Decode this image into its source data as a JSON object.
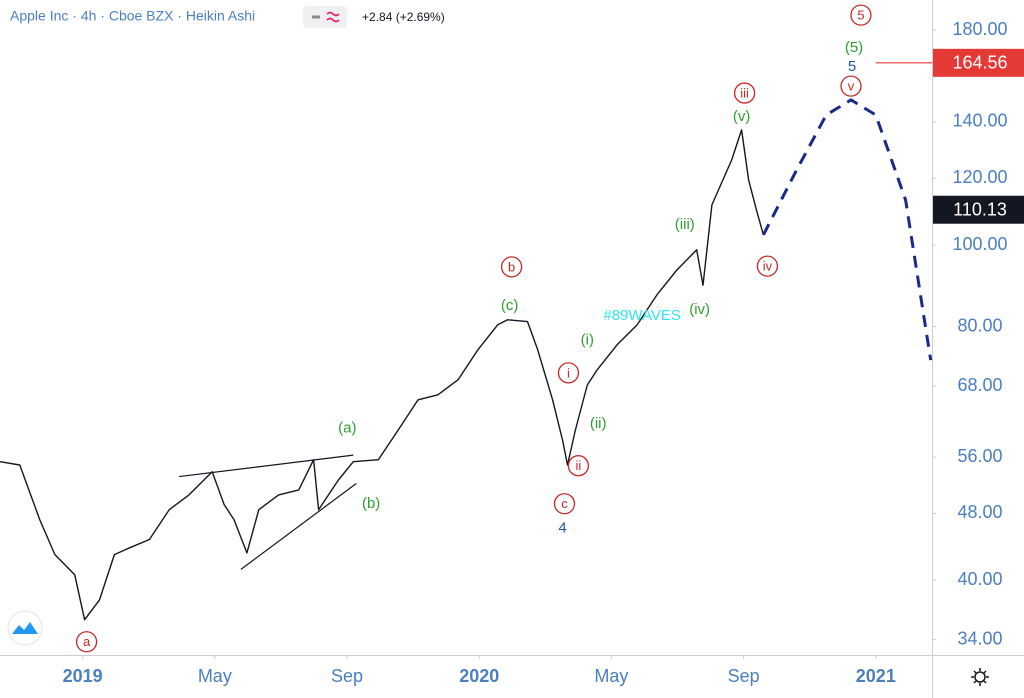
{
  "chart_data": {
    "type": "line",
    "title": "Apple Inc · 4h · Cboe BZX · Heikin Ashi",
    "change": "+2.84 (+2.69%)",
    "log_scale": true,
    "grid": false,
    "xlim": [
      -2.5,
      25.7
    ],
    "xticks": [
      {
        "value": 0,
        "label": "2019"
      },
      {
        "value": 4,
        "label": "May"
      },
      {
        "value": 8,
        "label": "Sep"
      },
      {
        "value": 12,
        "label": "2020"
      },
      {
        "value": 16,
        "label": "May"
      },
      {
        "value": 20,
        "label": "Sep"
      },
      {
        "value": 24,
        "label": "2021"
      }
    ],
    "ylim": [
      32.6,
      195.4
    ],
    "yticks": [
      {
        "value": 34,
        "label": "34.00"
      },
      {
        "value": 40,
        "label": "40.00"
      },
      {
        "value": 48,
        "label": "48.00"
      },
      {
        "value": 56,
        "label": "56.00"
      },
      {
        "value": 68,
        "label": "68.00"
      },
      {
        "value": 80,
        "label": "80.00"
      },
      {
        "value": 100,
        "label": "100.00"
      },
      {
        "value": 120,
        "label": "120.00"
      },
      {
        "value": 140,
        "label": "140.00"
      },
      {
        "value": 180,
        "label": "180.00"
      }
    ],
    "series": [
      {
        "color": "#131722",
        "width": 1.4,
        "dashed": false,
        "x": [
          -2.5,
          -1.9,
          -1.3,
          -0.84,
          -0.24,
          0.06,
          0.51,
          0.96,
          1.42,
          2.02,
          2.62,
          3.22,
          3.92,
          4.28,
          4.58,
          4.97,
          5.33,
          5.93,
          6.54,
          6.99,
          7.14,
          7.74,
          8.19,
          8.95,
          9.55,
          10.15,
          10.75,
          11.36,
          11.96,
          12.56,
          12.86,
          13.46,
          13.77,
          14.22,
          14.52,
          14.67,
          14.91,
          15.27,
          15.57,
          16.17,
          16.78,
          17.38,
          17.98,
          18.58,
          18.77,
          19.04,
          19.64,
          19.94,
          20.15,
          20.39,
          20.6
        ],
        "values": [
          55.3,
          54.8,
          47.2,
          42.9,
          40.6,
          35.9,
          37.9,
          42.9,
          43.7,
          44.7,
          48.5,
          50.5,
          53.8,
          49.2,
          47.2,
          43.1,
          48.5,
          50.5,
          51.2,
          55.6,
          48.5,
          52.6,
          55.3,
          55.6,
          60.3,
          65.5,
          66.4,
          69.2,
          75.1,
          80.4,
          81.5,
          81.1,
          75.1,
          65.5,
          58.7,
          54.8,
          60.3,
          68.2,
          71.1,
          76.1,
          80.4,
          87.3,
          93.4,
          98.7,
          89.6,
          111.6,
          126.2,
          137.0,
          119.5,
          110.0,
          102.8
        ]
      },
      {
        "color": "#1a2a8c",
        "width": 3,
        "dashed": true,
        "x": [
          20.6,
          21.6,
          22.5,
          23.25,
          24.0,
          24.9,
          25.66
        ],
        "values": [
          102.8,
          122.7,
          142.7,
          148.7,
          142.7,
          113.1,
          73.0
        ]
      }
    ],
    "trendlines": [
      {
        "x": [
          2.92,
          8.19
        ],
        "values": [
          53.1,
          56.3
        ]
      },
      {
        "x": [
          4.79,
          8.28
        ],
        "values": [
          41.2,
          52.1
        ]
      }
    ],
    "annotations": [
      {
        "text": "5",
        "x": 23.55,
        "y": 187.5,
        "color": "#c62828",
        "circled": true
      },
      {
        "text": "(5)",
        "x": 23.34,
        "y": 171.8,
        "color": "#2e9e2e",
        "circled": false
      },
      {
        "text": "5",
        "x": 23.28,
        "y": 163.2,
        "color": "#1e5aa8",
        "circled": false
      },
      {
        "text": "v",
        "x": 23.25,
        "y": 154.4,
        "color": "#c62828",
        "circled": true
      },
      {
        "text": "iii",
        "x": 20.03,
        "y": 151.5,
        "color": "#c62828",
        "circled": true
      },
      {
        "text": "(v)",
        "x": 19.94,
        "y": 142.3,
        "color": "#2e9e2e",
        "circled": false
      },
      {
        "text": "(iii)",
        "x": 18.22,
        "y": 105.9,
        "color": "#2e9e2e",
        "circled": false
      },
      {
        "text": "iv",
        "x": 20.72,
        "y": 94.4,
        "color": "#c62828",
        "circled": true
      },
      {
        "text": "(iv)",
        "x": 18.67,
        "y": 84.0,
        "color": "#2e9e2e",
        "circled": false
      },
      {
        "text": "#89WAVES",
        "x": 16.93,
        "y": 82.6,
        "color": "#2ee6f0",
        "circled": false
      },
      {
        "text": "b",
        "x": 12.98,
        "y": 94.2,
        "color": "#c62828",
        "circled": true
      },
      {
        "text": "(c)",
        "x": 12.92,
        "y": 84.9,
        "color": "#2e9e2e",
        "circled": false
      },
      {
        "text": "(i)",
        "x": 15.27,
        "y": 77.2,
        "color": "#2e9e2e",
        "circled": false
      },
      {
        "text": "i",
        "x": 14.7,
        "y": 70.5,
        "color": "#c62828",
        "circled": true
      },
      {
        "text": "(ii)",
        "x": 15.6,
        "y": 61.5,
        "color": "#2e9e2e",
        "circled": false
      },
      {
        "text": "ii",
        "x": 15.0,
        "y": 54.7,
        "color": "#c62828",
        "circled": true
      },
      {
        "text": "c",
        "x": 14.58,
        "y": 49.3,
        "color": "#c62828",
        "circled": true
      },
      {
        "text": "4",
        "x": 14.52,
        "y": 46.2,
        "color": "#1e5aa8",
        "circled": false
      },
      {
        "text": "(a)",
        "x": 8.01,
        "y": 60.7,
        "color": "#2e9e2e",
        "circled": false
      },
      {
        "text": "(b)",
        "x": 8.73,
        "y": 49.4,
        "color": "#2e9e2e",
        "circled": false
      },
      {
        "text": "a",
        "x": 0.12,
        "y": 33.8,
        "color": "#c62828",
        "circled": true
      }
    ],
    "price_markers": [
      {
        "value": 164.56,
        "color": "#e53935",
        "line_from": 24.0
      },
      {
        "value": 110.13,
        "color": "#131722"
      }
    ]
  }
}
